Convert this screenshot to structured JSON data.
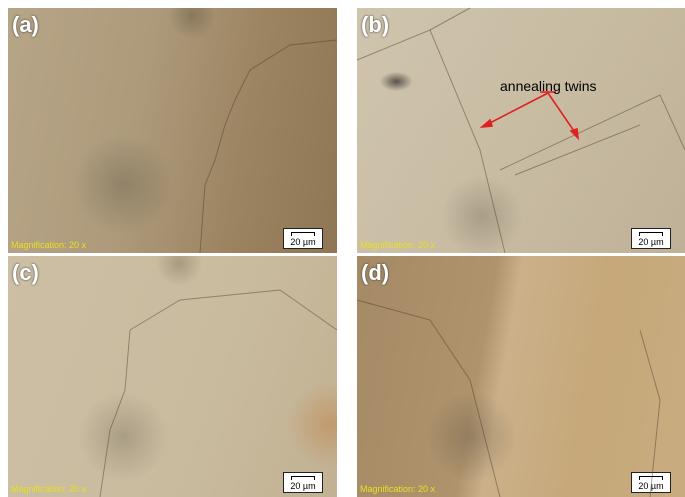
{
  "panels": [
    {
      "label": "(a)",
      "magnification": "Magnification: 20 x",
      "scale_bar": "20 µm"
    },
    {
      "label": "(b)",
      "magnification": "Magnification: 20 x",
      "scale_bar": "20 µm"
    },
    {
      "label": "(c)",
      "magnification": "Magnification: 20 x",
      "scale_bar": "20 µm"
    },
    {
      "label": "(d)",
      "magnification": "Magnification: 20 x",
      "scale_bar": "20 µm"
    }
  ],
  "annotation": "annealing twins"
}
